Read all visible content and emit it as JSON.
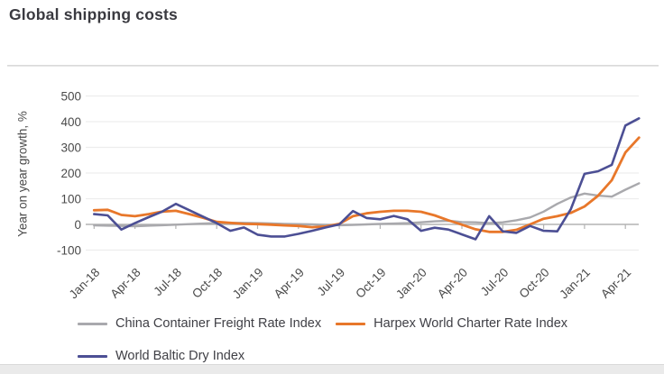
{
  "header": {
    "title": "Global shipping costs"
  },
  "chart": {
    "colors": {
      "title_text": "#3a3a40",
      "tick_text": "#4a4a4a",
      "gridline": "#ededed",
      "axis": "#b3b3b3",
      "divider": "#d9d9d9"
    }
  },
  "chart_data": {
    "type": "line",
    "title": "Global shipping costs",
    "xlabel": "",
    "ylabel": "Year on year growth, %",
    "ylim": [
      -100,
      500
    ],
    "y_ticks": [
      500,
      400,
      300,
      200,
      100,
      0,
      -100
    ],
    "grid": "horizontal",
    "legend_position": "bottom",
    "x": [
      "Jan-18",
      "Feb-18",
      "Mar-18",
      "Apr-18",
      "May-18",
      "Jun-18",
      "Jul-18",
      "Aug-18",
      "Sep-18",
      "Oct-18",
      "Nov-18",
      "Dec-18",
      "Jan-19",
      "Feb-19",
      "Mar-19",
      "Apr-19",
      "May-19",
      "Jun-19",
      "Jul-19",
      "Aug-19",
      "Sep-19",
      "Oct-19",
      "Nov-19",
      "Dec-19",
      "Jan-20",
      "Feb-20",
      "Mar-20",
      "Apr-20",
      "May-20",
      "Jun-20",
      "Jul-20",
      "Aug-20",
      "Sep-20",
      "Oct-20",
      "Nov-20",
      "Dec-20",
      "Jan-21",
      "Feb-21",
      "Mar-21",
      "Apr-21",
      "May-21"
    ],
    "x_tick_labels": [
      "Jan-18",
      "Apr-18",
      "Jul-18",
      "Oct-18",
      "Jan-19",
      "Apr-19",
      "Jul-19",
      "Oct-19",
      "Jan-20",
      "Apr-20",
      "Jul-20",
      "Oct-20",
      "Jan-21",
      "Apr-21"
    ],
    "series": [
      {
        "id": "china-container-freight",
        "name": "China Container Freight Rate Index",
        "color": "#a9a9ad",
        "values": [
          -4,
          -5,
          -6,
          -7,
          -5,
          -3,
          -1,
          1,
          3,
          5,
          6,
          6,
          5,
          4,
          2,
          1,
          0,
          -2,
          -3,
          -2,
          0,
          2,
          3,
          5,
          8,
          12,
          14,
          9,
          8,
          5,
          8,
          16,
          27,
          50,
          80,
          105,
          120,
          112,
          108,
          135,
          160
        ]
      },
      {
        "id": "harpex-world-charter",
        "name": "Harpex World Charter Rate Index",
        "color": "#e8772a",
        "values": [
          55,
          57,
          37,
          32,
          40,
          50,
          53,
          40,
          26,
          10,
          6,
          2,
          1,
          -1,
          -4,
          -6,
          -11,
          -8,
          2,
          32,
          43,
          49,
          53,
          53,
          49,
          35,
          16,
          -1,
          -19,
          -29,
          -29,
          -21,
          0,
          22,
          32,
          45,
          70,
          112,
          172,
          280,
          338
        ]
      },
      {
        "id": "world-baltic-dry",
        "name": "World Baltic Dry Index",
        "color": "#4c4f94",
        "values": [
          40,
          35,
          -20,
          5,
          28,
          50,
          80,
          55,
          30,
          5,
          -25,
          -12,
          -40,
          -47,
          -47,
          -37,
          -25,
          -12,
          0,
          52,
          25,
          20,
          33,
          20,
          -25,
          -13,
          -20,
          -39,
          -58,
          32,
          -27,
          -33,
          -6,
          -25,
          -27,
          60,
          197,
          207,
          232,
          385,
          413
        ]
      }
    ]
  }
}
